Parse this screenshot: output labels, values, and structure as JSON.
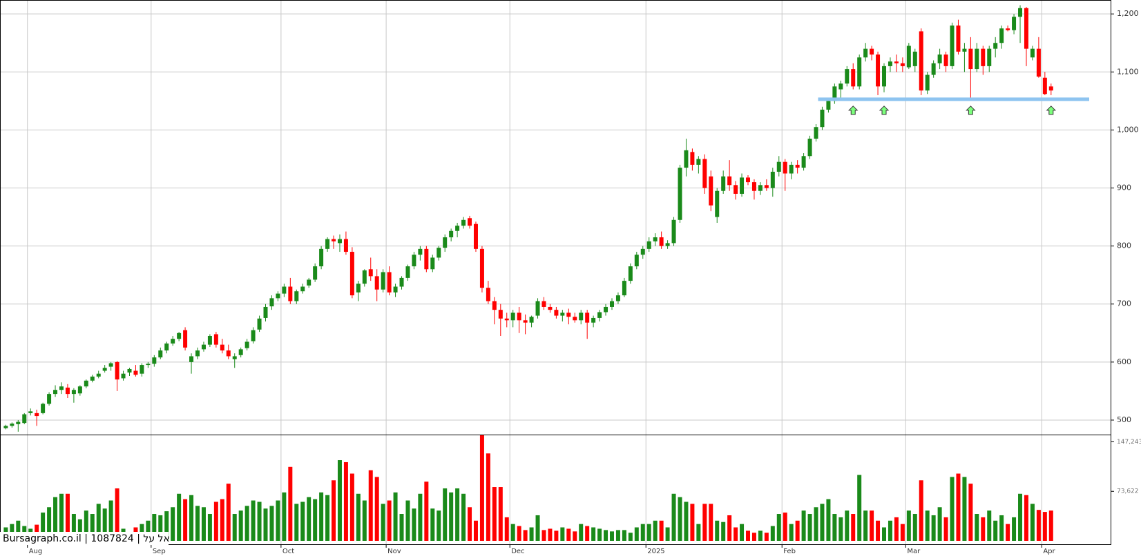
{
  "chart_data": {
    "type": "candlestick",
    "grid": true,
    "up_color": "#1a8a1a",
    "down_color": "#ff0000",
    "ylim": [
      475,
      1224
    ],
    "yticks": [
      500,
      600,
      700,
      800,
      900,
      {
        "value": 1000,
        "label": "1,000"
      },
      {
        "value": 1100,
        "label": "1,100"
      },
      {
        "value": 1200,
        "label": "1,200"
      }
    ],
    "volume_ylim": [
      0,
      158000
    ],
    "volume_yticks": [
      {
        "value": 73622,
        "label": "73,622"
      },
      {
        "value": 147243,
        "label": "147,243"
      }
    ],
    "xticks": [
      {
        "value": 4,
        "label": "Aug"
      },
      {
        "value": 24,
        "label": "Sep"
      },
      {
        "value": 45,
        "label": "Oct"
      },
      {
        "value": 62,
        "label": "Nov"
      },
      {
        "value": 82,
        "label": "Dec"
      },
      {
        "value": 104,
        "label": "2025"
      },
      {
        "value": 126,
        "label": "Feb"
      },
      {
        "value": 146,
        "label": "Mar"
      },
      {
        "value": 168,
        "label": "Apr"
      }
    ],
    "support_level": 1053,
    "support_color": "#8ec4f0",
    "signal_indices": [
      137,
      142,
      156,
      169
    ],
    "watermark": "Bursagraph.co.il | 1087824 | אל על",
    "open": [
      486,
      490,
      493,
      495,
      512,
      512,
      512,
      528,
      545,
      552,
      556,
      545,
      546,
      558,
      568,
      575,
      585,
      592,
      600,
      572,
      582,
      585,
      580,
      595,
      597,
      608,
      620,
      632,
      640,
      655,
      600,
      610,
      622,
      630,
      648,
      630,
      620,
      605,
      612,
      624,
      636,
      656,
      676,
      696,
      710,
      718,
      730,
      705,
      722,
      732,
      742,
      765,
      795,
      812,
      805,
      812,
      790,
      720,
      735,
      760,
      748,
      725,
      755,
      720,
      730,
      745,
      765,
      785,
      795,
      760,
      780,
      797,
      815,
      826,
      835,
      848,
      838,
      795,
      728,
      705,
      690,
      675,
      672,
      685,
      672,
      668,
      680,
      705,
      695,
      690,
      680,
      685,
      678,
      672,
      685,
      668,
      676,
      686,
      695,
      705,
      715,
      740,
      765,
      785,
      795,
      808,
      815,
      800,
      805,
      845,
      935,
      962,
      940,
      950,
      920,
      850,
      895,
      920,
      905,
      890,
      918,
      910,
      895,
      905,
      900,
      928,
      945,
      925,
      940,
      935,
      955,
      985,
      1005,
      1035,
      1050,
      1070,
      1080,
      1105,
      1075,
      1125,
      1140,
      1130,
      1075,
      1110,
      1118,
      1115,
      1108,
      1110,
      1170,
      1068,
      1095,
      1115,
      1130,
      1110,
      1180,
      1135,
      1140,
      1105,
      1140,
      1110,
      1140,
      1150,
      1175,
      1172,
      1195,
      1210,
      1125,
      1140,
      1090,
      1075
    ],
    "high": [
      492,
      496,
      500,
      512,
      520,
      518,
      530,
      548,
      560,
      565,
      562,
      555,
      560,
      570,
      578,
      585,
      595,
      600,
      602,
      585,
      590,
      595,
      598,
      600,
      612,
      625,
      635,
      645,
      652,
      660,
      615,
      625,
      635,
      648,
      652,
      640,
      630,
      615,
      625,
      640,
      660,
      680,
      700,
      715,
      722,
      735,
      745,
      725,
      735,
      745,
      770,
      800,
      815,
      818,
      820,
      825,
      798,
      740,
      760,
      780,
      760,
      760,
      765,
      735,
      748,
      768,
      790,
      800,
      800,
      785,
      800,
      820,
      830,
      840,
      850,
      852,
      842,
      800,
      740,
      712,
      700,
      685,
      690,
      695,
      682,
      680,
      710,
      712,
      700,
      695,
      690,
      692,
      685,
      690,
      690,
      680,
      690,
      700,
      710,
      720,
      745,
      770,
      790,
      800,
      815,
      822,
      825,
      810,
      850,
      940,
      985,
      968,
      955,
      958,
      930,
      900,
      930,
      948,
      912,
      925,
      922,
      915,
      910,
      915,
      935,
      955,
      950,
      945,
      948,
      960,
      990,
      1010,
      1040,
      1055,
      1080,
      1085,
      1110,
      1115,
      1130,
      1150,
      1145,
      1135,
      1115,
      1125,
      1130,
      1125,
      1150,
      1140,
      1175,
      1100,
      1120,
      1140,
      1135,
      1185,
      1190,
      1150,
      1160,
      1150,
      1145,
      1145,
      1160,
      1180,
      1180,
      1200,
      1215,
      1212,
      1145,
      1160,
      1100,
      1080
    ],
    "low": [
      484,
      487,
      480,
      493,
      508,
      490,
      510,
      525,
      540,
      545,
      538,
      530,
      542,
      555,
      565,
      572,
      582,
      585,
      550,
      568,
      576,
      575,
      575,
      590,
      592,
      605,
      615,
      628,
      636,
      620,
      580,
      605,
      618,
      626,
      625,
      615,
      605,
      590,
      608,
      620,
      632,
      652,
      670,
      690,
      705,
      712,
      700,
      700,
      718,
      728,
      738,
      760,
      790,
      795,
      790,
      785,
      710,
      705,
      730,
      740,
      705,
      720,
      715,
      712,
      725,
      740,
      760,
      775,
      755,
      755,
      775,
      790,
      808,
      815,
      830,
      830,
      790,
      720,
      700,
      665,
      645,
      660,
      660,
      650,
      648,
      660,
      675,
      690,
      685,
      675,
      670,
      665,
      668,
      665,
      640,
      660,
      670,
      680,
      690,
      700,
      712,
      735,
      760,
      778,
      790,
      800,
      795,
      795,
      800,
      840,
      920,
      930,
      925,
      890,
      860,
      840,
      890,
      895,
      880,
      885,
      905,
      880,
      888,
      895,
      885,
      920,
      895,
      915,
      925,
      930,
      950,
      980,
      1000,
      1030,
      1045,
      1055,
      1075,
      1070,
      1070,
      1118,
      1120,
      1060,
      1065,
      1100,
      1100,
      1100,
      1105,
      1100,
      1060,
      1062,
      1090,
      1105,
      1100,
      1105,
      1130,
      1100,
      1055,
      1100,
      1095,
      1100,
      1125,
      1140,
      1170,
      1165,
      1150,
      1110,
      1120,
      1090,
      1060,
      1060
    ],
    "close": [
      490,
      494,
      497,
      510,
      515,
      507,
      528,
      545,
      552,
      558,
      545,
      552,
      558,
      568,
      575,
      580,
      590,
      598,
      570,
      580,
      588,
      578,
      595,
      597,
      608,
      620,
      632,
      640,
      650,
      625,
      610,
      620,
      630,
      645,
      630,
      620,
      610,
      610,
      622,
      635,
      655,
      675,
      695,
      710,
      718,
      730,
      705,
      722,
      730,
      742,
      765,
      795,
      812,
      808,
      812,
      790,
      715,
      735,
      758,
      748,
      725,
      755,
      720,
      730,
      745,
      765,
      785,
      795,
      760,
      780,
      797,
      815,
      826,
      835,
      845,
      835,
      795,
      728,
      705,
      690,
      675,
      672,
      685,
      672,
      668,
      678,
      705,
      695,
      690,
      680,
      685,
      678,
      672,
      685,
      668,
      676,
      686,
      695,
      705,
      715,
      740,
      765,
      785,
      795,
      808,
      815,
      800,
      805,
      845,
      935,
      965,
      940,
      950,
      900,
      870,
      895,
      920,
      905,
      890,
      918,
      910,
      895,
      905,
      900,
      928,
      945,
      925,
      940,
      935,
      955,
      985,
      1005,
      1035,
      1050,
      1075,
      1080,
      1105,
      1075,
      1125,
      1140,
      1130,
      1075,
      1110,
      1118,
      1115,
      1110,
      1145,
      1135,
      1068,
      1095,
      1115,
      1130,
      1110,
      1180,
      1135,
      1140,
      1105,
      1140,
      1110,
      1140,
      1150,
      1175,
      1172,
      1195,
      1210,
      1140,
      1140,
      1092,
      1062,
      1068
    ],
    "volume": [
      20000,
      25000,
      30000,
      22000,
      18000,
      24000,
      42000,
      50000,
      65000,
      70000,
      70000,
      40000,
      32000,
      45000,
      40000,
      55000,
      48000,
      60000,
      78000,
      18000,
      12000,
      20000,
      25000,
      30000,
      40000,
      38000,
      44000,
      50000,
      70000,
      62000,
      68000,
      52000,
      50000,
      40000,
      58000,
      62000,
      85000,
      40000,
      45000,
      52000,
      60000,
      58000,
      48000,
      52000,
      60000,
      72000,
      110000,
      55000,
      58000,
      65000,
      62000,
      72000,
      68000,
      90000,
      120000,
      117000,
      100000,
      70000,
      60000,
      105000,
      95000,
      55000,
      60000,
      72000,
      40000,
      60000,
      48000,
      70000,
      88000,
      48000,
      45000,
      78000,
      72000,
      78000,
      70000,
      50000,
      30000,
      157000,
      130000,
      80000,
      80000,
      35000,
      25000,
      22000,
      16000,
      20000,
      38000,
      16000,
      18000,
      15000,
      20000,
      18000,
      14000,
      25000,
      22000,
      20000,
      18000,
      16000,
      14000,
      16000,
      16000,
      12000,
      20000,
      25000,
      25000,
      30000,
      30000,
      20000,
      70000,
      65000,
      58000,
      55000,
      25000,
      55000,
      55000,
      30000,
      28000,
      38000,
      20000,
      25000,
      15000,
      12000,
      15000,
      12000,
      22000,
      40000,
      42000,
      25000,
      30000,
      45000,
      40000,
      50000,
      55000,
      62000,
      40000,
      35000,
      45000,
      40000,
      98000,
      45000,
      45000,
      30000,
      20000,
      30000,
      35000,
      25000,
      45000,
      40000,
      90000,
      45000,
      38000,
      50000,
      35000,
      95000,
      100000,
      95000,
      85000,
      40000,
      35000,
      45000,
      30000,
      38000,
      25000,
      35000,
      70000,
      68000,
      55000,
      46000,
      43000,
      45000
    ]
  }
}
